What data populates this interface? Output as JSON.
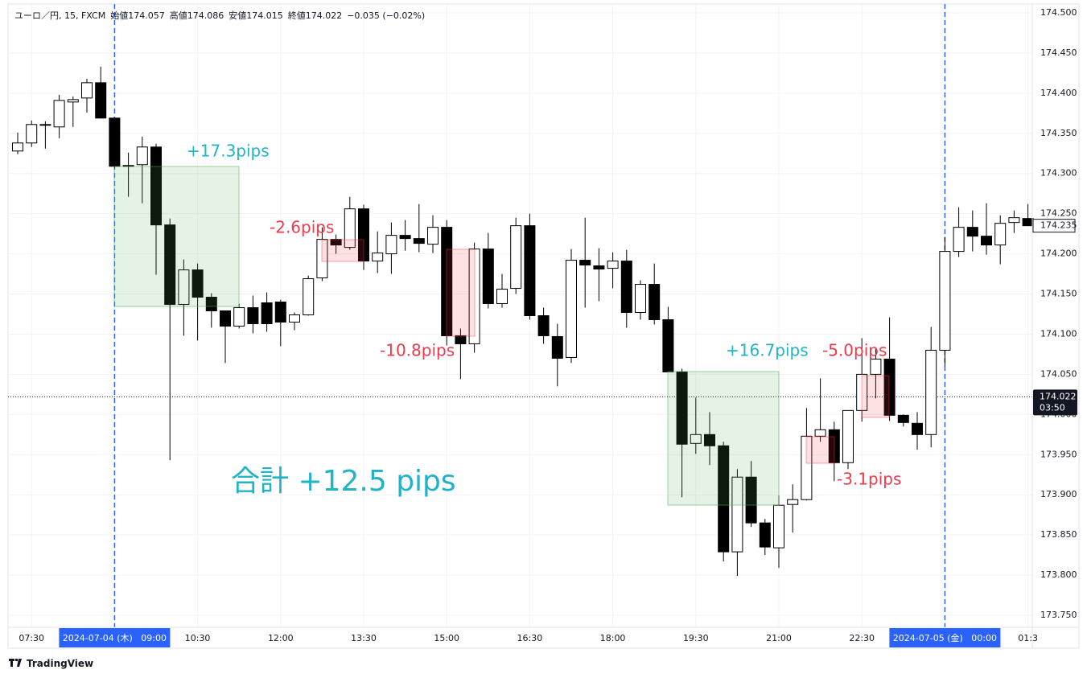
{
  "header": {
    "symbol": "ユーロ／円, 15, FXCM",
    "ohlc": [
      {
        "label": "始値",
        "value": "174.057"
      },
      {
        "label": "高値",
        "value": "174.086"
      },
      {
        "label": "安値",
        "value": "174.015"
      },
      {
        "label": "終値",
        "value": "174.022"
      }
    ],
    "change": "−0.035 (−0.02%)"
  },
  "brand": "TradingView",
  "chart_data": {
    "type": "candlestick",
    "categories": [
      null,
      "07:30",
      null,
      null,
      null,
      null,
      null,
      "2024-07-04 (木)   09:00",
      null,
      null,
      null,
      null,
      null,
      "10:30",
      null,
      null,
      null,
      null,
      null,
      "12:00",
      null,
      null,
      null,
      null,
      null,
      "13:30",
      null,
      null,
      null,
      null,
      null,
      "15:00",
      null,
      null,
      null,
      null,
      null,
      "16:30",
      null,
      null,
      null,
      null,
      null,
      "18:00",
      null,
      null,
      null,
      null,
      null,
      "19:30",
      null,
      null,
      null,
      null,
      null,
      "21:00",
      null,
      null,
      null,
      null,
      null,
      "22:30",
      null,
      null,
      null,
      null,
      null,
      "2024-07-05 (金)   00:00",
      null,
      null,
      null,
      null,
      null,
      "01:3"
    ],
    "open": [
      174.328,
      174.338,
      174.36,
      174.358,
      174.389,
      174.394,
      174.413,
      174.369,
      174.31,
      174.311,
      174.333,
      174.236,
      174.137,
      174.18,
      174.146,
      174.129,
      174.11,
      174.133,
      174.139,
      174.14,
      174.115,
      174.124,
      174.17,
      174.218,
      174.208,
      174.256,
      174.191,
      174.2,
      174.223,
      174.219,
      174.212,
      174.233,
      174.098,
      174.088,
      174.206,
      174.138,
      174.157,
      174.235,
      174.123,
      174.097,
      174.071,
      174.192,
      174.185,
      174.182,
      174.191,
      174.127,
      174.162,
      174.118,
      174.053,
      173.964,
      173.975,
      173.961,
      173.829,
      173.922,
      173.865,
      173.834,
      173.888,
      173.894,
      173.973,
      173.981,
      173.94,
      174.005,
      174.05,
      174.069,
      173.999,
      173.989,
      173.975,
      174.08,
      174.203,
      174.233,
      174.222,
      174.211,
      174.239,
      174.244
    ],
    "high": [
      174.351,
      174.366,
      174.365,
      174.398,
      174.396,
      174.418,
      174.433,
      174.369,
      174.326,
      174.346,
      174.337,
      174.244,
      174.193,
      174.188,
      174.151,
      174.129,
      174.138,
      174.148,
      174.152,
      174.143,
      174.127,
      174.173,
      174.233,
      174.224,
      174.271,
      174.261,
      174.228,
      174.239,
      174.242,
      174.262,
      174.248,
      174.242,
      174.107,
      174.214,
      174.226,
      174.175,
      174.245,
      174.25,
      174.133,
      174.113,
      174.206,
      174.245,
      174.207,
      174.202,
      174.205,
      174.167,
      174.188,
      174.134,
      174.057,
      174.021,
      174.003,
      173.966,
      173.932,
      173.942,
      173.87,
      173.899,
      173.913,
      174.008,
      174.045,
      173.991,
      174.005,
      174.095,
      174.082,
      174.121,
      174.0,
      174.003,
      174.109,
      174.221,
      174.258,
      174.254,
      174.263,
      174.248,
      174.254,
      174.262
    ],
    "low": [
      174.324,
      174.333,
      174.331,
      174.344,
      174.358,
      174.376,
      174.369,
      174.306,
      174.271,
      174.263,
      174.174,
      173.943,
      174.098,
      174.092,
      174.108,
      174.064,
      174.107,
      174.101,
      174.103,
      174.085,
      174.105,
      174.123,
      174.166,
      174.2,
      174.205,
      174.18,
      174.176,
      174.175,
      174.204,
      174.202,
      174.201,
      174.086,
      174.044,
      174.077,
      174.132,
      174.133,
      174.15,
      174.118,
      174.088,
      174.035,
      174.064,
      174.133,
      174.141,
      174.157,
      174.108,
      174.118,
      174.112,
      174.053,
      173.897,
      173.951,
      173.937,
      173.817,
      173.799,
      173.86,
      173.825,
      173.809,
      173.853,
      173.893,
      173.966,
      173.917,
      173.932,
      173.991,
      174.02,
      173.992,
      173.985,
      173.956,
      173.959,
      174.06,
      174.196,
      174.203,
      174.199,
      174.187,
      174.226,
      174.235
    ],
    "close": [
      174.338,
      174.361,
      174.361,
      174.391,
      174.392,
      174.413,
      174.369,
      174.309,
      174.309,
      174.333,
      174.236,
      174.137,
      174.18,
      174.146,
      174.129,
      174.11,
      174.133,
      174.113,
      174.113,
      174.115,
      174.124,
      174.169,
      174.218,
      174.211,
      174.256,
      174.191,
      174.201,
      174.223,
      174.219,
      174.213,
      174.233,
      174.098,
      174.088,
      174.206,
      174.138,
      174.156,
      174.235,
      174.123,
      174.098,
      174.07,
      174.192,
      174.186,
      174.181,
      174.191,
      174.127,
      174.162,
      174.118,
      174.053,
      173.963,
      173.975,
      173.961,
      173.829,
      173.922,
      173.865,
      173.835,
      173.887,
      173.894,
      173.973,
      173.981,
      173.94,
      174.005,
      174.05,
      174.069,
      173.999,
      173.99,
      173.975,
      174.08,
      174.203,
      174.233,
      174.222,
      174.211,
      174.238,
      174.245,
      174.235
    ],
    "up_color": "#ffffff",
    "down_color": "#000000",
    "wick_color": "#000000",
    "ylim": [
      173.735,
      174.511
    ],
    "yticks": [
      {
        "value": 173.75,
        "label": "173.750"
      },
      {
        "value": 173.8,
        "label": "173.800"
      },
      {
        "value": 173.85,
        "label": "173.850"
      },
      {
        "value": 173.9,
        "label": "173.900"
      },
      {
        "value": 173.95,
        "label": "173.950"
      },
      {
        "value": 174.0,
        "label": "174.000"
      },
      {
        "value": 174.05,
        "label": "174.050"
      },
      {
        "value": 174.1,
        "label": "174.100"
      },
      {
        "value": 174.15,
        "label": "174.150"
      },
      {
        "value": 174.2,
        "label": "174.200"
      },
      {
        "value": 174.25,
        "label": "174.250"
      },
      {
        "value": 174.3,
        "label": "174.300"
      },
      {
        "value": 174.35,
        "label": "174.350"
      },
      {
        "value": 174.4,
        "label": "174.400"
      },
      {
        "value": 174.45,
        "label": "174.450"
      },
      {
        "value": 174.5,
        "label": "174.500"
      }
    ],
    "grid": true,
    "last_price": {
      "value": 174.022,
      "label": "174.022"
    },
    "countdown": "03:50",
    "bar_close": {
      "value": 174.235,
      "label": "174.235"
    },
    "annotations": [
      {
        "text": "+17.3pips",
        "color": "#22b3c8"
      },
      {
        "text": "-2.6pips",
        "color": "#ee3a4c"
      },
      {
        "text": "-10.8pips",
        "color": "#ee3a4c"
      },
      {
        "text": "+16.7pips",
        "color": "#22b3c8"
      },
      {
        "text": "-5.0pips",
        "color": "#ee3a4c"
      },
      {
        "text": "-3.1pips",
        "color": "#ee3a4c"
      }
    ],
    "total": {
      "text": "合計 +12.5 pips",
      "color": "#22b3c8"
    }
  }
}
